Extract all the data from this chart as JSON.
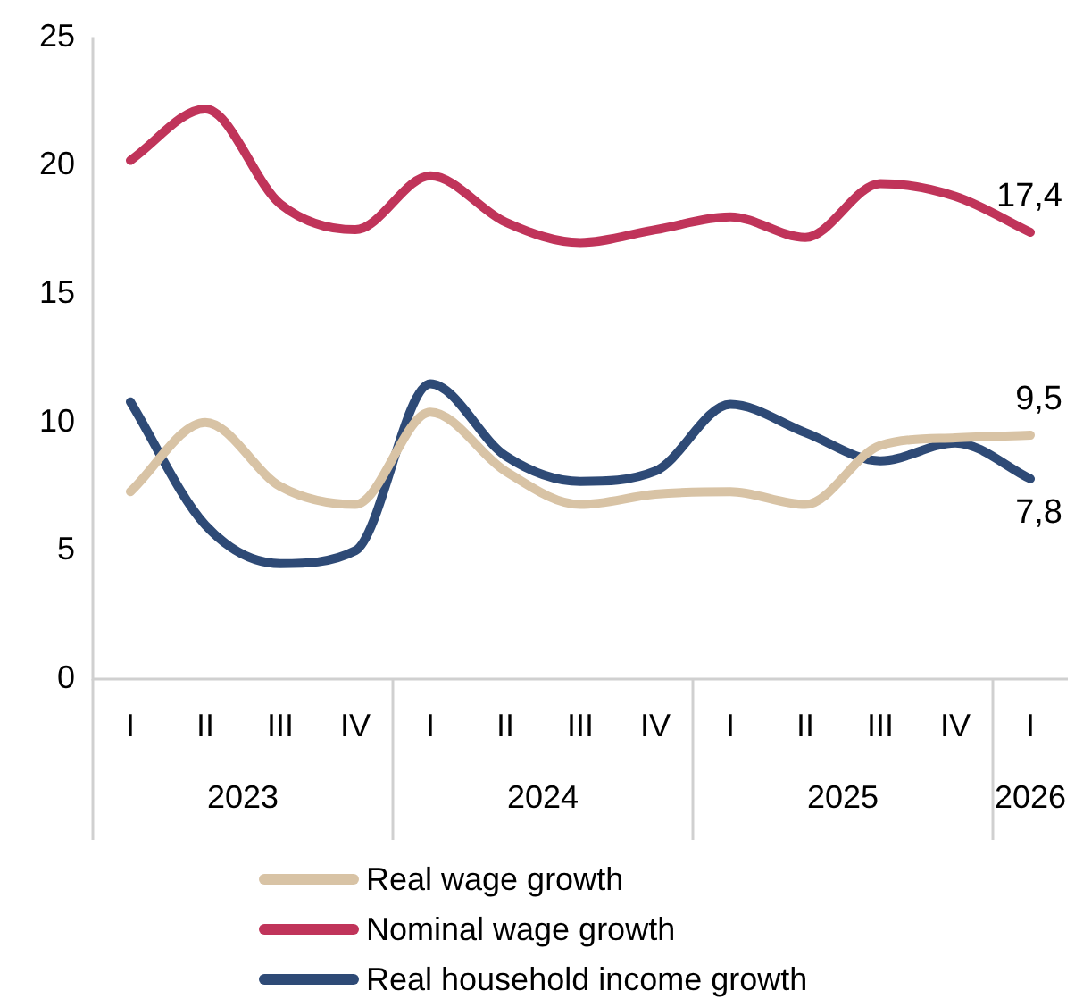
{
  "chart_data": {
    "type": "line",
    "categories": [
      "I",
      "II",
      "III",
      "IV",
      "I",
      "II",
      "III",
      "IV",
      "I",
      "II",
      "III",
      "IV",
      "I"
    ],
    "annotations": [
      "2023",
      "2024",
      "2025",
      "2026"
    ],
    "ylim": [
      0,
      25
    ],
    "yticks": [
      0,
      5,
      10,
      15,
      20,
      25
    ],
    "grid": false,
    "legend": "bottom",
    "marker": "none",
    "line_style": "solid",
    "series": [
      {
        "name": "Real wage growth",
        "color": "#d8c3a5",
        "values": [
          7.3,
          10.0,
          7.5,
          6.8,
          10.4,
          8.1,
          6.8,
          7.2,
          7.3,
          6.8,
          9.1,
          9.4,
          9.5
        ],
        "value_labels": [
          null,
          null,
          null,
          null,
          null,
          null,
          null,
          null,
          null,
          null,
          null,
          null,
          "9,5"
        ]
      },
      {
        "name": "Nominal wage growth",
        "color": "#c0345a",
        "values": [
          20.2,
          22.2,
          18.5,
          17.5,
          19.6,
          17.8,
          17.0,
          17.5,
          18.0,
          17.2,
          19.3,
          18.8,
          17.4
        ],
        "value_labels": [
          null,
          null,
          null,
          null,
          null,
          null,
          null,
          null,
          null,
          null,
          null,
          null,
          "17,4"
        ]
      },
      {
        "name": "Real household income growth",
        "color": "#2e4a76",
        "values": [
          10.8,
          6.0,
          4.5,
          5.0,
          11.5,
          8.7,
          7.7,
          8.1,
          10.7,
          9.6,
          8.5,
          9.2,
          7.8
        ],
        "value_labels": [
          null,
          null,
          null,
          null,
          null,
          null,
          null,
          null,
          null,
          null,
          null,
          null,
          "7,8"
        ]
      }
    ]
  }
}
